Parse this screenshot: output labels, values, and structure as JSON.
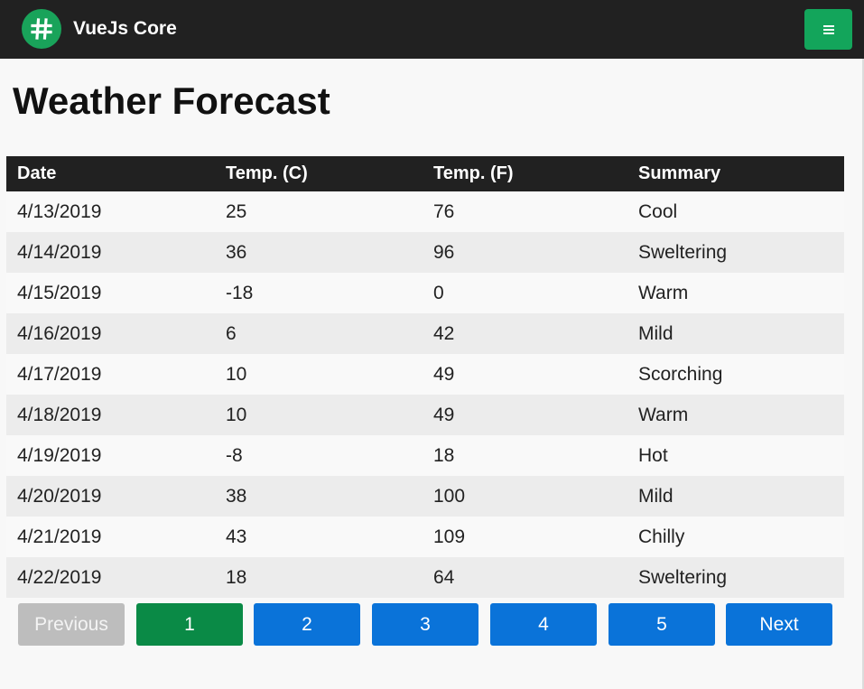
{
  "header": {
    "brand": "VueJs Core",
    "logo_icon": "hash-icon",
    "menu_icon": "hamburger-icon",
    "colors": {
      "bar": "#212121",
      "logo": "#19a35a",
      "menu_button": "#13a55b"
    }
  },
  "main": {
    "title": "Weather Forecast",
    "table": {
      "columns": [
        "Date",
        "Temp. (C)",
        "Temp. (F)",
        "Summary"
      ],
      "rows": [
        [
          "4/13/2019",
          "25",
          "76",
          "Cool"
        ],
        [
          "4/14/2019",
          "36",
          "96",
          "Sweltering"
        ],
        [
          "4/15/2019",
          "-18",
          "0",
          "Warm"
        ],
        [
          "4/16/2019",
          "6",
          "42",
          "Mild"
        ],
        [
          "4/17/2019",
          "10",
          "49",
          "Scorching"
        ],
        [
          "4/18/2019",
          "10",
          "49",
          "Warm"
        ],
        [
          "4/19/2019",
          "-8",
          "18",
          "Hot"
        ],
        [
          "4/20/2019",
          "38",
          "100",
          "Mild"
        ],
        [
          "4/21/2019",
          "43",
          "109",
          "Chilly"
        ],
        [
          "4/22/2019",
          "18",
          "64",
          "Sweltering"
        ]
      ]
    },
    "pagination": {
      "previous": "Previous",
      "pages": [
        "1",
        "2",
        "3",
        "4",
        "5"
      ],
      "current_page": "1",
      "next": "Next",
      "colors": {
        "disabled": "#bdbdbd",
        "active": "#0a8a46",
        "normal": "#0a73d9"
      }
    }
  }
}
